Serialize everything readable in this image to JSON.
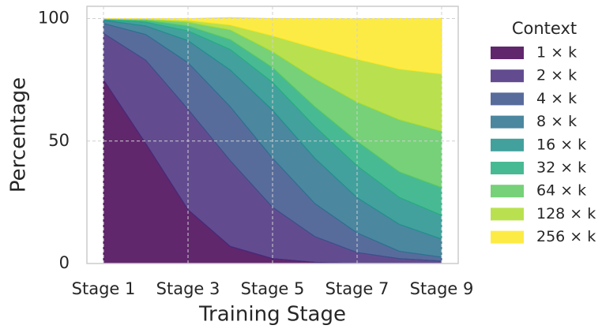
{
  "chart_data": {
    "type": "stacked_area",
    "x_label": "Training Stage",
    "y_label": "Percentage",
    "legend_title": "Context",
    "categories": [
      "Stage 1",
      null,
      "Stage 3",
      null,
      "Stage 5",
      null,
      "Stage 7",
      null,
      "Stage 9"
    ],
    "ylim": [
      0,
      105
    ],
    "yticks": [
      0,
      50,
      100
    ],
    "grid": true,
    "legend": "outside right",
    "series": [
      {
        "name": "1 × k",
        "color": "#440154",
        "values": [
          75,
          49,
          22,
          7,
          2,
          0.5,
          0,
          0,
          0
        ]
      },
      {
        "name": "2 × k",
        "color": "#472d7b",
        "values": [
          19,
          34,
          41,
          35,
          21,
          10.5,
          4.5,
          2,
          1
        ]
      },
      {
        "name": "4 × k",
        "color": "#3b528b",
        "values": [
          4,
          10.5,
          19,
          22,
          20,
          13.5,
          8,
          3,
          1.6
        ]
      },
      {
        "name": "8 × k",
        "color": "#2c728e",
        "values": [
          1.3,
          3.5,
          9,
          15,
          19.6,
          18.5,
          14.4,
          11,
          7.4
        ]
      },
      {
        "name": "16 × k",
        "color": "#21918c",
        "values": [
          0.3,
          1.5,
          4,
          8.4,
          11.4,
          13,
          13,
          11,
          9.7
        ]
      },
      {
        "name": "32 × k",
        "color": "#28ae80",
        "values": [
          0.2,
          0.7,
          2,
          4,
          6,
          8,
          10,
          10.4,
          11.3
        ]
      },
      {
        "name": "64 × k",
        "color": "#5ec962",
        "values": [
          0.1,
          0.4,
          1.5,
          4,
          6.5,
          11.5,
          16,
          21.3,
          23
        ]
      },
      {
        "name": "128 × k",
        "color": "#addc30",
        "values": [
          0.1,
          0.3,
          0.8,
          2,
          6.5,
          12.5,
          17.5,
          20.7,
          23.4
        ]
      },
      {
        "name": "256 × k",
        "color": "#fde725",
        "values": [
          0,
          0.1,
          0.7,
          3,
          7,
          12,
          16.5,
          20.6,
          22.6
        ]
      }
    ]
  }
}
